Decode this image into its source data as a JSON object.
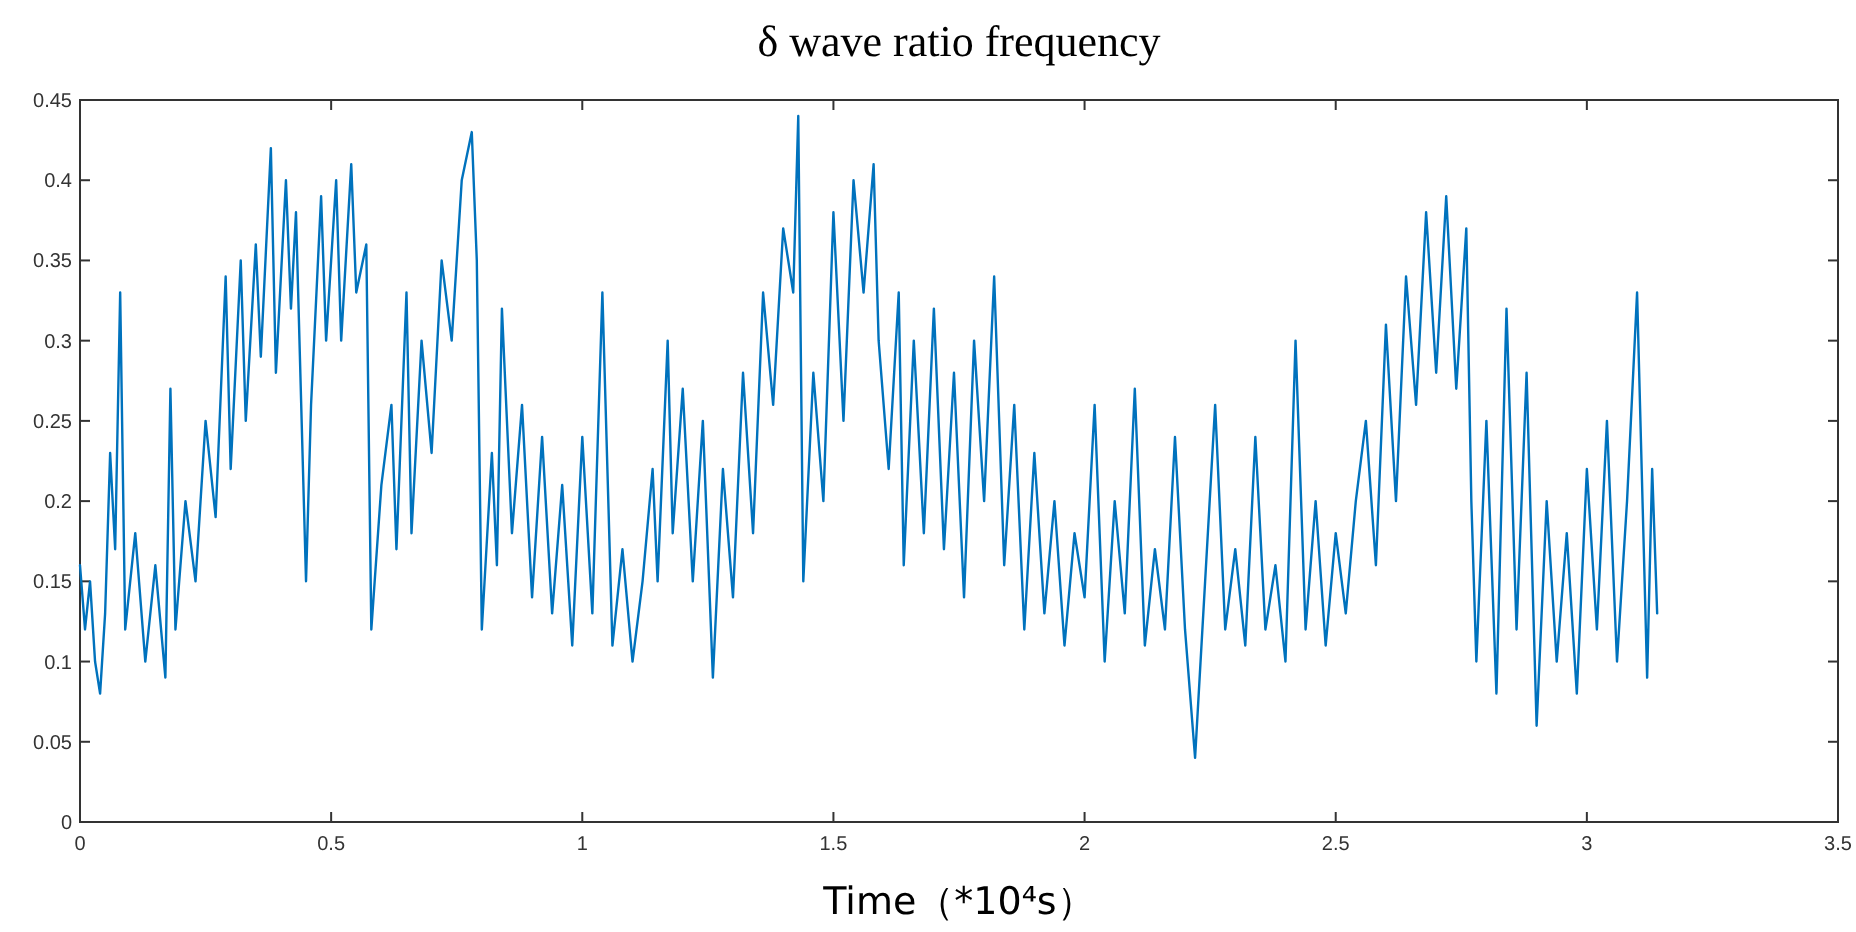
{
  "chart_data": {
    "type": "line",
    "title": "δ wave ratio frequency",
    "xlabel": "Time（*10⁴s）",
    "xlim": [
      0,
      3.5
    ],
    "xticks": [
      0,
      0.5,
      1,
      1.5,
      2,
      2.5,
      3,
      3.5
    ],
    "ylim": [
      0,
      0.45
    ],
    "yticks": [
      0,
      0.05,
      0.1,
      0.15,
      0.2,
      0.25,
      0.3,
      0.35,
      0.4,
      0.45
    ],
    "grid": false,
    "marker": "none",
    "line_style": "solid",
    "series": [
      {
        "color": "#0072bd",
        "x": [
          0,
          0.01,
          0.02,
          0.03,
          0.04,
          0.05,
          0.06,
          0.07,
          0.08,
          0.09,
          0.11,
          0.13,
          0.15,
          0.17,
          0.18,
          0.19,
          0.21,
          0.23,
          0.25,
          0.27,
          0.29,
          0.3,
          0.32,
          0.33,
          0.35,
          0.36,
          0.38,
          0.39,
          0.41,
          0.42,
          0.43,
          0.45,
          0.46,
          0.48,
          0.49,
          0.51,
          0.52,
          0.54,
          0.55,
          0.57,
          0.58,
          0.6,
          0.62,
          0.63,
          0.65,
          0.66,
          0.68,
          0.7,
          0.72,
          0.74,
          0.76,
          0.78,
          0.79,
          0.8,
          0.82,
          0.83,
          0.84,
          0.86,
          0.88,
          0.9,
          0.92,
          0.94,
          0.96,
          0.98,
          1.0,
          1.02,
          1.04,
          1.06,
          1.08,
          1.1,
          1.12,
          1.14,
          1.15,
          1.17,
          1.18,
          1.2,
          1.22,
          1.24,
          1.26,
          1.28,
          1.3,
          1.32,
          1.34,
          1.36,
          1.38,
          1.4,
          1.42,
          1.43,
          1.44,
          1.46,
          1.48,
          1.5,
          1.52,
          1.54,
          1.56,
          1.58,
          1.59,
          1.61,
          1.63,
          1.64,
          1.66,
          1.68,
          1.7,
          1.72,
          1.74,
          1.76,
          1.78,
          1.8,
          1.82,
          1.84,
          1.86,
          1.88,
          1.9,
          1.92,
          1.94,
          1.96,
          1.98,
          2.0,
          2.02,
          2.04,
          2.06,
          2.08,
          2.1,
          2.12,
          2.14,
          2.16,
          2.18,
          2.2,
          2.22,
          2.24,
          2.26,
          2.28,
          2.3,
          2.32,
          2.34,
          2.36,
          2.38,
          2.4,
          2.42,
          2.44,
          2.46,
          2.48,
          2.5,
          2.52,
          2.54,
          2.56,
          2.58,
          2.6,
          2.62,
          2.64,
          2.66,
          2.68,
          2.7,
          2.72,
          2.74,
          2.76,
          2.77,
          2.78,
          2.8,
          2.82,
          2.84,
          2.86,
          2.88,
          2.9,
          2.92,
          2.94,
          2.96,
          2.98,
          3.0,
          3.02,
          3.04,
          3.06,
          3.08,
          3.1,
          3.12,
          3.13,
          3.14
        ],
        "values": [
          0.16,
          0.12,
          0.15,
          0.1,
          0.08,
          0.13,
          0.23,
          0.17,
          0.33,
          0.12,
          0.18,
          0.1,
          0.16,
          0.09,
          0.27,
          0.12,
          0.2,
          0.15,
          0.25,
          0.19,
          0.34,
          0.22,
          0.35,
          0.25,
          0.36,
          0.29,
          0.42,
          0.28,
          0.4,
          0.32,
          0.38,
          0.15,
          0.26,
          0.39,
          0.3,
          0.4,
          0.3,
          0.41,
          0.33,
          0.36,
          0.12,
          0.21,
          0.26,
          0.17,
          0.33,
          0.18,
          0.3,
          0.23,
          0.35,
          0.3,
          0.4,
          0.43,
          0.35,
          0.12,
          0.23,
          0.16,
          0.32,
          0.18,
          0.26,
          0.14,
          0.24,
          0.13,
          0.21,
          0.11,
          0.24,
          0.13,
          0.33,
          0.11,
          0.17,
          0.1,
          0.15,
          0.22,
          0.15,
          0.3,
          0.18,
          0.27,
          0.15,
          0.25,
          0.09,
          0.22,
          0.14,
          0.28,
          0.18,
          0.33,
          0.26,
          0.37,
          0.33,
          0.44,
          0.15,
          0.28,
          0.2,
          0.38,
          0.25,
          0.4,
          0.33,
          0.41,
          0.3,
          0.22,
          0.33,
          0.16,
          0.3,
          0.18,
          0.32,
          0.17,
          0.28,
          0.14,
          0.3,
          0.2,
          0.34,
          0.16,
          0.26,
          0.12,
          0.23,
          0.13,
          0.2,
          0.11,
          0.18,
          0.14,
          0.26,
          0.1,
          0.2,
          0.13,
          0.27,
          0.11,
          0.17,
          0.12,
          0.24,
          0.12,
          0.04,
          0.15,
          0.26,
          0.12,
          0.17,
          0.11,
          0.24,
          0.12,
          0.16,
          0.1,
          0.3,
          0.12,
          0.2,
          0.11,
          0.18,
          0.13,
          0.2,
          0.25,
          0.16,
          0.31,
          0.2,
          0.34,
          0.26,
          0.38,
          0.28,
          0.39,
          0.27,
          0.37,
          0.2,
          0.1,
          0.25,
          0.08,
          0.32,
          0.12,
          0.28,
          0.06,
          0.2,
          0.1,
          0.18,
          0.08,
          0.22,
          0.12,
          0.25,
          0.1,
          0.2,
          0.33,
          0.09,
          0.22,
          0.13
        ]
      }
    ]
  }
}
